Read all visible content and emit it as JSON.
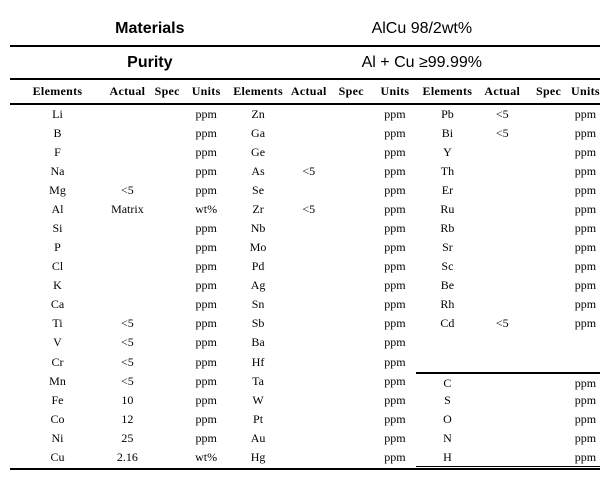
{
  "title_rows": {
    "materials_label": "Materials",
    "materials_value": "AlCu 98/2wt%",
    "purity_label": "Purity",
    "purity_value": "Al + Cu ≥99.99%"
  },
  "column_headers": [
    "Elements",
    "Actual",
    "Spec",
    "Units",
    "Elements",
    "Actual",
    "Spec",
    "Units",
    "Elements",
    "Actual",
    "Spec",
    "Units"
  ],
  "rows": [
    [
      "Li",
      "",
      "",
      "ppm",
      "Zn",
      "",
      "",
      "ppm",
      "Pb",
      "<5",
      "",
      "ppm"
    ],
    [
      "B",
      "",
      "",
      "ppm",
      "Ga",
      "",
      "",
      "ppm",
      "Bi",
      "<5",
      "",
      "ppm"
    ],
    [
      "F",
      "",
      "",
      "ppm",
      "Ge",
      "",
      "",
      "ppm",
      "Y",
      "",
      "",
      "ppm"
    ],
    [
      "Na",
      "",
      "",
      "ppm",
      "As",
      "<5",
      "",
      "ppm",
      "Th",
      "",
      "",
      "ppm"
    ],
    [
      "Mg",
      "<5",
      "",
      "ppm",
      "Se",
      "",
      "",
      "ppm",
      "Er",
      "",
      "",
      "ppm"
    ],
    [
      "Al",
      "Matrix",
      "",
      "wt%",
      "Zr",
      "<5",
      "",
      "ppm",
      "Ru",
      "",
      "",
      "ppm"
    ],
    [
      "Si",
      "",
      "",
      "ppm",
      "Nb",
      "",
      "",
      "ppm",
      "Rb",
      "",
      "",
      "ppm"
    ],
    [
      "P",
      "",
      "",
      "ppm",
      "Mo",
      "",
      "",
      "ppm",
      "Sr",
      "",
      "",
      "ppm"
    ],
    [
      "Cl",
      "",
      "",
      "ppm",
      "Pd",
      "",
      "",
      "ppm",
      "Sc",
      "",
      "",
      "ppm"
    ],
    [
      "K",
      "",
      "",
      "ppm",
      "Ag",
      "",
      "",
      "ppm",
      "Be",
      "",
      "",
      "ppm"
    ],
    [
      "Ca",
      "",
      "",
      "ppm",
      "Sn",
      "",
      "",
      "ppm",
      "Rh",
      "",
      "",
      "ppm"
    ],
    [
      "Ti",
      "<5",
      "",
      "ppm",
      "Sb",
      "",
      "",
      "ppm",
      "Cd",
      "<5",
      "",
      "ppm"
    ],
    [
      "V",
      "<5",
      "",
      "ppm",
      "Ba",
      "",
      "",
      "ppm",
      "",
      "",
      "",
      ""
    ],
    [
      "Cr",
      "<5",
      "",
      "ppm",
      "Hf",
      "",
      "",
      "ppm",
      "",
      "",
      "",
      ""
    ],
    [
      "Mn",
      "<5",
      "",
      "ppm",
      "Ta",
      "",
      "",
      "ppm",
      "C",
      "",
      "",
      "ppm"
    ],
    [
      "Fe",
      "10",
      "",
      "ppm",
      "W",
      "",
      "",
      "ppm",
      "S",
      "",
      "",
      "ppm"
    ],
    [
      "Co",
      "12",
      "",
      "ppm",
      "Pt",
      "",
      "",
      "ppm",
      "O",
      "",
      "",
      "ppm"
    ],
    [
      "Ni",
      "25",
      "",
      "ppm",
      "Au",
      "",
      "",
      "ppm",
      "N",
      "",
      "",
      "ppm"
    ],
    [
      "Cu",
      "2.16",
      "",
      "wt%",
      "Hg",
      "",
      "",
      "ppm",
      "H",
      "",
      "",
      "ppm"
    ]
  ],
  "colors": {
    "text": "#000000",
    "background": "#ffffff",
    "rule": "#000000"
  }
}
